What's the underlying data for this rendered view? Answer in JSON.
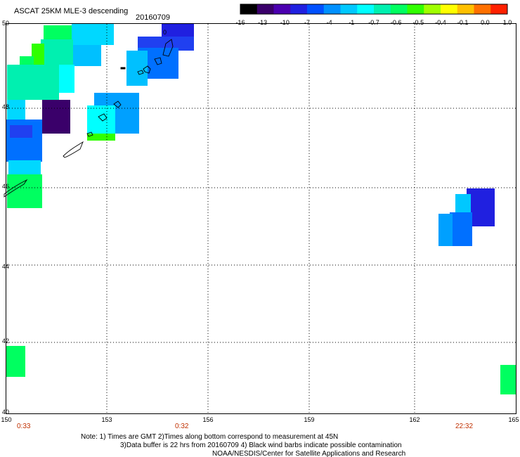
{
  "title": "ASCAT 25KM MLE-3 descending",
  "date": "20160709",
  "colorbar": {
    "colors": [
      "#000000",
      "#3a006a",
      "#4b00b0",
      "#2020e0",
      "#0050ff",
      "#0090ff",
      "#00c8ff",
      "#00ffff",
      "#00f0b0",
      "#00ff60",
      "#30ff00",
      "#a0ff00",
      "#ffff00",
      "#ffc000",
      "#ff7000",
      "#ff2000"
    ],
    "labels": [
      "-16",
      "-13",
      "-10",
      "-7",
      "-4",
      "-1",
      "-0.7",
      "-0.6",
      "-0.5",
      "-0.4",
      "-0.1",
      "0.0",
      "1.0"
    ]
  },
  "axes": {
    "lon_ticks": [
      "150",
      "153",
      "156",
      "159",
      "162",
      "165"
    ],
    "lat_ticks": [
      "50",
      "48",
      "46",
      "44",
      "42",
      "40"
    ],
    "times": [
      "0:33",
      "0:32",
      "22:32"
    ]
  },
  "notes": {
    "line1": "Note: 1) Times are GMT 2)Times along bottom correspond to measurement at 45N",
    "line2": "3)Data buffer is 22 hrs from 20160709 4) Black wind barbs indicate possible contamination",
    "line3": "NOAA/NESDIS/Center for Satellite Applications and Research"
  },
  "island_label": "0"
}
